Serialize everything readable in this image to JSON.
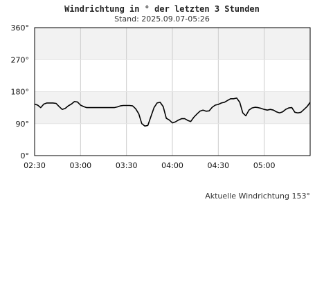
{
  "chart_data": {
    "type": "line",
    "title": "Windrichtung in ° der letzten 3 Stunden",
    "subtitle": "Stand: 2025.09.07-05:26",
    "ylim": [
      0,
      360
    ],
    "yticks": [
      {
        "value": 0,
        "label": "0°"
      },
      {
        "value": 90,
        "label": "90°"
      },
      {
        "value": 180,
        "label": "180°"
      },
      {
        "value": 270,
        "label": "270°"
      },
      {
        "value": 360,
        "label": "360°"
      }
    ],
    "xlim": [
      "02:30",
      "05:30"
    ],
    "xticks": [
      "02:30",
      "03:00",
      "03:30",
      "04:00",
      "04:30",
      "05:00"
    ],
    "bands": [
      [
        90,
        180
      ],
      [
        270,
        360
      ]
    ],
    "grid": true,
    "line_color": "#000000",
    "band_color": "#f2f2f2",
    "grid_color": "#cccccc",
    "x": [
      "02:30",
      "02:32",
      "02:34",
      "02:36",
      "02:38",
      "02:40",
      "02:42",
      "02:44",
      "02:46",
      "02:48",
      "02:50",
      "02:52",
      "02:54",
      "02:56",
      "02:58",
      "03:00",
      "03:02",
      "03:04",
      "03:06",
      "03:08",
      "03:10",
      "03:12",
      "03:14",
      "03:16",
      "03:18",
      "03:20",
      "03:22",
      "03:24",
      "03:26",
      "03:28",
      "03:30",
      "03:32",
      "03:34",
      "03:36",
      "03:38",
      "03:40",
      "03:42",
      "03:44",
      "03:46",
      "03:48",
      "03:50",
      "03:52",
      "03:54",
      "03:56",
      "03:58",
      "04:00",
      "04:02",
      "04:04",
      "04:06",
      "04:08",
      "04:10",
      "04:12",
      "04:14",
      "04:16",
      "04:18",
      "04:20",
      "04:22",
      "04:24",
      "04:26",
      "04:28",
      "04:30",
      "04:32",
      "04:34",
      "04:36",
      "04:38",
      "04:40",
      "04:42",
      "04:44",
      "04:46",
      "04:48",
      "04:50",
      "04:52",
      "04:54",
      "04:56",
      "04:58",
      "05:00",
      "05:02",
      "05:04",
      "05:06",
      "05:08",
      "05:10",
      "05:12",
      "05:14",
      "05:16",
      "05:18",
      "05:20",
      "05:22",
      "05:24",
      "05:26",
      "05:28",
      "05:30"
    ],
    "series": [
      {
        "values": [
          145,
          142,
          135,
          145,
          148,
          148,
          148,
          147,
          138,
          130,
          133,
          140,
          145,
          152,
          151,
          142,
          138,
          135,
          135,
          135,
          135,
          135,
          135,
          135,
          135,
          135,
          135,
          137,
          140,
          141,
          141,
          141,
          140,
          132,
          118,
          90,
          83,
          85,
          110,
          135,
          148,
          150,
          138,
          105,
          100,
          92,
          95,
          100,
          104,
          104,
          99,
          96,
          108,
          117,
          125,
          128,
          125,
          126,
          136,
          142,
          144,
          148,
          150,
          155,
          160,
          160,
          162,
          150,
          120,
          112,
          128,
          134,
          136,
          135,
          133,
          130,
          128,
          130,
          128,
          123,
          120,
          123,
          130,
          134,
          135,
          122,
          120,
          122,
          130,
          138,
          150
        ]
      }
    ]
  },
  "footer": {
    "current_label": "Aktuelle Windrichtung 153°"
  }
}
